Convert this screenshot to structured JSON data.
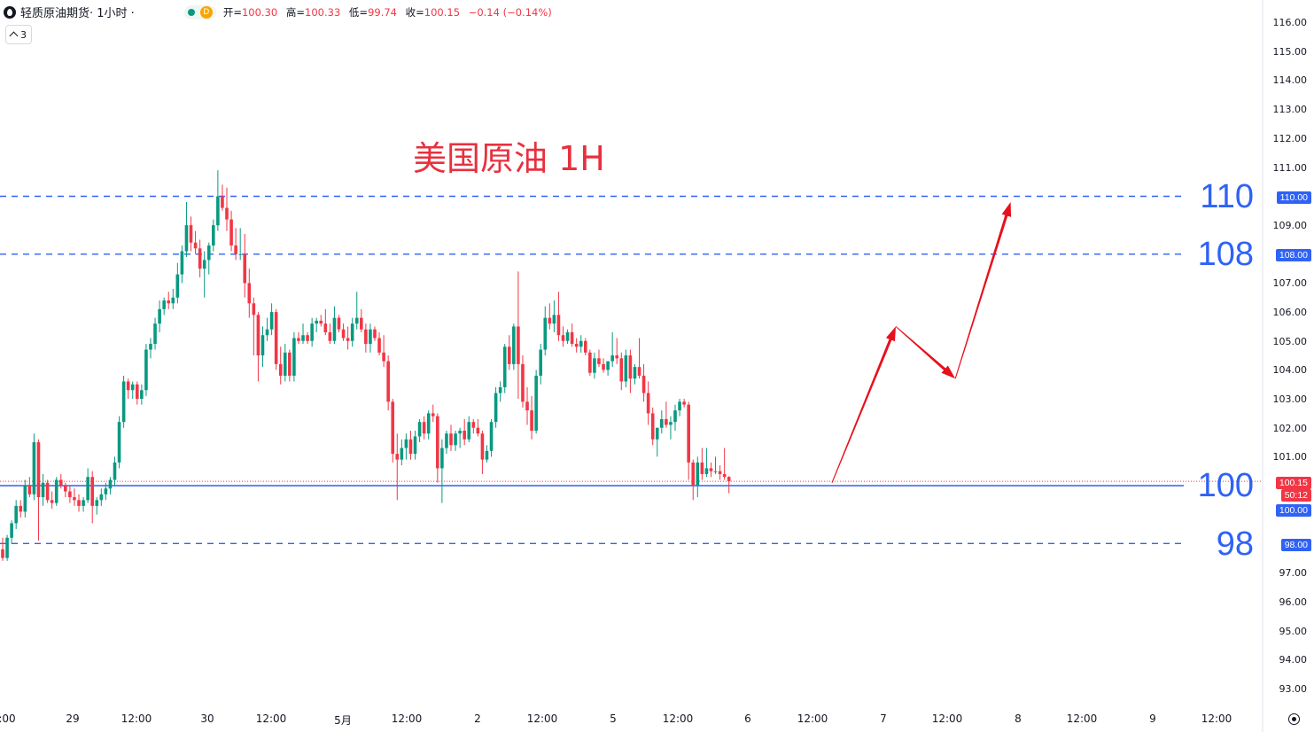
{
  "header": {
    "symbol": "轻质原油期货",
    "interval": " · 1小时 ·",
    "badge": "D",
    "ohlc": [
      {
        "label": "开=",
        "value": "100.30"
      },
      {
        "label": "高=",
        "value": "100.33"
      },
      {
        "label": "低=",
        "value": "99.74"
      },
      {
        "label": "收=",
        "value": "100.15"
      }
    ],
    "change": "−0.14 (−0.14%)",
    "indicator_count": "3"
  },
  "annotation": {
    "title": "美国原油 1H",
    "levels": [
      {
        "label": "110",
        "price": 110.0,
        "badge": "110.00"
      },
      {
        "label": "108",
        "price": 108.0,
        "badge": "108.00"
      },
      {
        "label": "100",
        "price": 100.0,
        "badge": "100.00"
      },
      {
        "label": "98",
        "price": 98.0,
        "badge": "98.00"
      }
    ],
    "projection_path": [
      {
        "x": 97.5,
        "y": 100.1
      },
      {
        "x": 105.0,
        "y": 105.5
      },
      {
        "x": 112.0,
        "y": 103.7
      },
      {
        "x": 118.5,
        "y": 109.8
      }
    ]
  },
  "price_axis": {
    "ticks": [
      "116.00",
      "115.00",
      "114.00",
      "113.00",
      "112.00",
      "111.00",
      "109.00",
      "107.00",
      "106.00",
      "105.00",
      "104.00",
      "103.00",
      "102.00",
      "101.00",
      "97.00",
      "96.00",
      "95.00",
      "94.00",
      "93.00"
    ],
    "current_price": "100.15",
    "countdown": "50:12"
  },
  "time_axis": {
    "ticks": [
      ":00",
      "29",
      "12:00",
      "30",
      "12:00",
      "5月",
      "12:00",
      "2",
      "12:00",
      "5",
      "12:00",
      "6",
      "12:00",
      "7",
      "12:00",
      "8",
      "12:00",
      "9",
      "12:00"
    ]
  },
  "colors": {
    "up": "#089981",
    "down": "#f23645",
    "level_line": "#2f62f5",
    "arrow": "#e8101c",
    "title": "#e8303f"
  },
  "chart_data": {
    "type": "candlestick",
    "title": "美国原油 1H",
    "ylim": [
      92.5,
      116.5
    ],
    "x_unit": "hourly bars",
    "candles": [
      [
        97.8,
        98.2,
        97.4,
        97.5
      ],
      [
        97.5,
        98.3,
        97.4,
        98.2
      ],
      [
        98.2,
        98.8,
        98.0,
        98.7
      ],
      [
        98.7,
        99.5,
        98.5,
        99.3
      ],
      [
        99.3,
        99.5,
        98.9,
        99.1
      ],
      [
        99.1,
        100.2,
        98.9,
        100.0
      ],
      [
        100.0,
        100.3,
        99.6,
        99.7
      ],
      [
        99.7,
        101.8,
        99.5,
        101.5
      ],
      [
        101.5,
        101.6,
        98.1,
        99.6
      ],
      [
        99.6,
        100.4,
        99.3,
        100.1
      ],
      [
        100.1,
        100.2,
        99.4,
        99.5
      ],
      [
        99.5,
        99.8,
        99.2,
        99.4
      ],
      [
        99.4,
        100.3,
        99.3,
        100.2
      ],
      [
        100.2,
        100.4,
        99.9,
        100.0
      ],
      [
        100.0,
        100.1,
        99.6,
        99.8
      ],
      [
        99.8,
        100.0,
        99.4,
        99.6
      ],
      [
        99.6,
        99.9,
        99.3,
        99.5
      ],
      [
        99.5,
        99.7,
        99.1,
        99.3
      ],
      [
        99.3,
        99.6,
        99.1,
        99.5
      ],
      [
        99.5,
        100.6,
        99.4,
        100.3
      ],
      [
        100.3,
        100.5,
        98.7,
        99.3
      ],
      [
        99.3,
        99.6,
        99.0,
        99.5
      ],
      [
        99.5,
        99.9,
        99.3,
        99.7
      ],
      [
        99.7,
        100.1,
        99.5,
        99.9
      ],
      [
        99.9,
        100.3,
        99.7,
        100.2
      ],
      [
        100.2,
        101.0,
        100.0,
        100.8
      ],
      [
        100.8,
        102.4,
        100.6,
        102.2
      ],
      [
        102.2,
        103.8,
        102.0,
        103.6
      ],
      [
        103.6,
        103.7,
        103.0,
        103.3
      ],
      [
        103.3,
        103.6,
        103.0,
        103.5
      ],
      [
        103.5,
        103.6,
        102.8,
        103.0
      ],
      [
        103.0,
        103.5,
        102.8,
        103.3
      ],
      [
        103.3,
        104.9,
        103.1,
        104.7
      ],
      [
        104.7,
        105.1,
        104.4,
        104.9
      ],
      [
        104.9,
        105.8,
        104.7,
        105.6
      ],
      [
        105.6,
        106.4,
        105.3,
        106.1
      ],
      [
        106.1,
        106.5,
        105.9,
        106.4
      ],
      [
        106.4,
        106.7,
        106.1,
        106.3
      ],
      [
        106.3,
        106.8,
        106.1,
        106.5
      ],
      [
        106.5,
        107.7,
        106.3,
        107.3
      ],
      [
        107.3,
        108.3,
        107.0,
        108.1
      ],
      [
        108.1,
        109.8,
        107.9,
        109.0
      ],
      [
        109.0,
        109.3,
        108.1,
        108.4
      ],
      [
        108.4,
        108.8,
        108.0,
        108.2
      ],
      [
        108.2,
        108.5,
        107.2,
        107.5
      ],
      [
        107.5,
        108.1,
        106.5,
        107.8
      ],
      [
        107.8,
        108.4,
        107.3,
        108.3
      ],
      [
        108.3,
        109.2,
        108.1,
        109.0
      ],
      [
        109.0,
        110.9,
        108.8,
        110.0
      ],
      [
        110.0,
        110.4,
        109.5,
        109.6
      ],
      [
        109.6,
        110.3,
        108.8,
        109.2
      ],
      [
        109.2,
        109.5,
        108.1,
        108.3
      ],
      [
        108.3,
        108.9,
        107.8,
        108.0
      ],
      [
        108.0,
        108.9,
        107.8,
        108.0
      ],
      [
        108.0,
        108.7,
        106.5,
        107.0
      ],
      [
        107.0,
        107.5,
        105.8,
        106.3
      ],
      [
        106.3,
        106.5,
        104.5,
        105.9
      ],
      [
        105.9,
        106.0,
        103.6,
        104.5
      ],
      [
        104.5,
        105.5,
        104.1,
        105.2
      ],
      [
        105.2,
        105.8,
        105.0,
        105.4
      ],
      [
        105.4,
        106.3,
        105.2,
        106.0
      ],
      [
        106.0,
        106.1,
        104.0,
        104.2
      ],
      [
        104.2,
        104.8,
        103.5,
        103.8
      ],
      [
        103.8,
        104.9,
        103.6,
        104.6
      ],
      [
        104.6,
        104.7,
        103.6,
        103.8
      ],
      [
        103.8,
        105.3,
        103.6,
        105.1
      ],
      [
        105.1,
        105.3,
        104.9,
        105.0
      ],
      [
        105.0,
        105.6,
        104.9,
        105.2
      ],
      [
        105.2,
        105.3,
        104.9,
        105.0
      ],
      [
        105.0,
        105.8,
        104.8,
        105.6
      ],
      [
        105.6,
        105.8,
        105.3,
        105.7
      ],
      [
        105.7,
        105.9,
        105.5,
        105.6
      ],
      [
        105.6,
        106.1,
        105.2,
        105.3
      ],
      [
        105.3,
        105.6,
        104.9,
        105.0
      ],
      [
        105.0,
        106.2,
        104.9,
        105.8
      ],
      [
        105.8,
        105.9,
        105.3,
        105.4
      ],
      [
        105.4,
        105.6,
        105.0,
        105.1
      ],
      [
        105.1,
        105.5,
        104.7,
        105.0
      ],
      [
        105.0,
        105.8,
        104.8,
        105.6
      ],
      [
        105.6,
        106.7,
        105.4,
        105.8
      ],
      [
        105.8,
        106.1,
        105.3,
        105.4
      ],
      [
        105.4,
        105.6,
        104.6,
        104.9
      ],
      [
        104.9,
        105.6,
        104.6,
        105.4
      ],
      [
        105.4,
        105.5,
        105.0,
        105.1
      ],
      [
        105.1,
        105.3,
        104.5,
        104.6
      ],
      [
        104.6,
        105.2,
        104.1,
        104.3
      ],
      [
        104.3,
        104.5,
        102.6,
        102.9
      ],
      [
        102.9,
        103.0,
        100.8,
        101.1
      ],
      [
        101.1,
        101.8,
        99.5,
        100.9
      ],
      [
        100.9,
        101.6,
        100.7,
        101.3
      ],
      [
        101.3,
        101.8,
        100.9,
        101.6
      ],
      [
        101.6,
        101.9,
        100.9,
        101.1
      ],
      [
        101.1,
        101.9,
        100.9,
        101.7
      ],
      [
        101.7,
        102.3,
        101.5,
        102.2
      ],
      [
        102.2,
        102.4,
        101.6,
        101.8
      ],
      [
        101.8,
        102.6,
        101.6,
        102.5
      ],
      [
        102.5,
        102.8,
        102.2,
        102.4
      ],
      [
        102.4,
        102.5,
        100.1,
        100.6
      ],
      [
        100.6,
        101.6,
        99.4,
        101.3
      ],
      [
        101.3,
        101.9,
        101.1,
        101.8
      ],
      [
        101.8,
        102.1,
        101.2,
        101.4
      ],
      [
        101.4,
        101.9,
        101.2,
        101.8
      ],
      [
        101.8,
        102.0,
        101.3,
        101.9
      ],
      [
        101.9,
        102.3,
        101.4,
        101.6
      ],
      [
        101.6,
        102.4,
        101.5,
        102.2
      ],
      [
        102.2,
        102.3,
        101.8,
        102.0
      ],
      [
        102.0,
        102.3,
        101.7,
        101.8
      ],
      [
        101.8,
        101.9,
        100.4,
        100.9
      ],
      [
        100.9,
        101.4,
        100.8,
        101.2
      ],
      [
        101.2,
        102.3,
        101.0,
        102.2
      ],
      [
        102.2,
        103.4,
        102.0,
        103.2
      ],
      [
        103.2,
        103.6,
        102.9,
        103.4
      ],
      [
        103.4,
        104.9,
        103.2,
        104.8
      ],
      [
        104.8,
        105.2,
        104.0,
        104.2
      ],
      [
        104.2,
        105.6,
        104.0,
        105.5
      ],
      [
        105.5,
        107.4,
        103.0,
        104.2
      ],
      [
        104.2,
        104.5,
        102.7,
        102.9
      ],
      [
        102.9,
        103.4,
        102.1,
        102.6
      ],
      [
        102.6,
        103.1,
        101.6,
        101.9
      ],
      [
        101.9,
        104.0,
        101.8,
        103.8
      ],
      [
        103.8,
        104.9,
        103.5,
        104.7
      ],
      [
        104.7,
        106.2,
        104.5,
        105.8
      ],
      [
        105.8,
        106.3,
        105.4,
        105.6
      ],
      [
        105.6,
        106.4,
        105.3,
        105.9
      ],
      [
        105.9,
        106.7,
        105.0,
        105.2
      ],
      [
        105.2,
        105.5,
        104.8,
        105.0
      ],
      [
        105.0,
        105.4,
        104.9,
        105.3
      ],
      [
        105.3,
        105.6,
        104.8,
        104.9
      ],
      [
        104.9,
        105.1,
        104.6,
        104.8
      ],
      [
        104.8,
        105.2,
        104.6,
        105.0
      ],
      [
        105.0,
        105.1,
        104.5,
        104.6
      ],
      [
        104.6,
        104.7,
        103.8,
        103.9
      ],
      [
        103.9,
        104.6,
        103.7,
        104.4
      ],
      [
        104.4,
        104.7,
        104.1,
        104.2
      ],
      [
        104.2,
        104.4,
        103.9,
        104.0
      ],
      [
        104.0,
        104.3,
        103.8,
        104.3
      ],
      [
        104.3,
        105.3,
        104.1,
        104.5
      ],
      [
        104.5,
        105.1,
        104.2,
        104.4
      ],
      [
        104.4,
        104.6,
        103.3,
        103.6
      ],
      [
        103.6,
        104.7,
        103.4,
        104.5
      ],
      [
        104.5,
        104.7,
        103.2,
        103.7
      ],
      [
        103.7,
        104.2,
        103.5,
        104.1
      ],
      [
        104.1,
        105.1,
        103.7,
        103.8
      ],
      [
        103.8,
        104.2,
        102.9,
        103.2
      ],
      [
        103.2,
        103.6,
        102.1,
        102.5
      ],
      [
        102.5,
        102.7,
        101.4,
        101.6
      ],
      [
        101.6,
        102.0,
        101.0,
        102.0
      ],
      [
        102.0,
        102.6,
        101.8,
        102.3
      ],
      [
        102.3,
        102.9,
        102.0,
        102.1
      ],
      [
        102.1,
        102.4,
        101.6,
        102.2
      ],
      [
        102.2,
        102.8,
        101.9,
        102.6
      ],
      [
        102.6,
        103.0,
        102.4,
        102.9
      ],
      [
        102.9,
        103.0,
        102.7,
        102.8
      ],
      [
        102.8,
        102.9,
        100.2,
        100.8
      ],
      [
        100.8,
        100.9,
        99.5,
        100.0
      ],
      [
        100.0,
        101.0,
        99.6,
        100.8
      ],
      [
        100.8,
        101.3,
        100.2,
        100.4
      ],
      [
        100.4,
        101.3,
        100.3,
        100.6
      ],
      [
        100.6,
        100.8,
        100.3,
        100.5
      ],
      [
        100.5,
        101.0,
        100.4,
        100.5
      ],
      [
        100.5,
        100.7,
        100.2,
        100.4
      ],
      [
        100.4,
        101.3,
        100.2,
        100.3
      ],
      [
        100.3,
        100.33,
        99.74,
        100.15
      ]
    ],
    "horizontal_levels": [
      110.0,
      108.0,
      100.0,
      98.0
    ],
    "annotations": [
      "110",
      "108",
      "100",
      "98"
    ]
  }
}
